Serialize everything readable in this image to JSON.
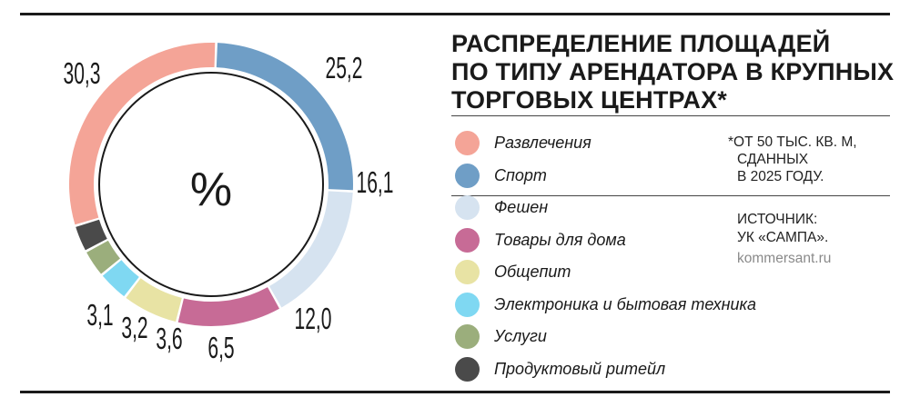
{
  "title_lines": [
    "Распределение площадей",
    "по типу арендатора в крупных",
    "торговых центрах*"
  ],
  "center_label": "%",
  "note_lines": [
    "*от 50 тыс. кв. м,",
    "сданных",
    "в 2025 году."
  ],
  "source_lines": [
    "Источник:",
    "УК «Сампа»."
  ],
  "site": "kommersant.ru",
  "chart_data": {
    "type": "pie",
    "variant": "donut",
    "title": "Распределение площадей по типу арендатора в крупных торговых центрах*",
    "unit": "%",
    "categories": [
      "Развлечения",
      "Спорт",
      "Фешен",
      "Товары для дома",
      "Общепит",
      "Электроника и бытовая техника",
      "Услуги",
      "Продуктовый ритейл"
    ],
    "values": [
      30.3,
      25.2,
      16.1,
      12.0,
      6.5,
      3.6,
      3.2,
      3.1
    ],
    "value_labels": [
      "30,3",
      "25,2",
      "16,1",
      "12,0",
      "6,5",
      "3,6",
      "3,2",
      "3,1"
    ],
    "colors": [
      "#f4a497",
      "#6f9ec6",
      "#d6e3f0",
      "#c76b96",
      "#e8e3a4",
      "#7fd8f2",
      "#9bae7c",
      "#4a4a4a"
    ],
    "legend_position": "right"
  }
}
